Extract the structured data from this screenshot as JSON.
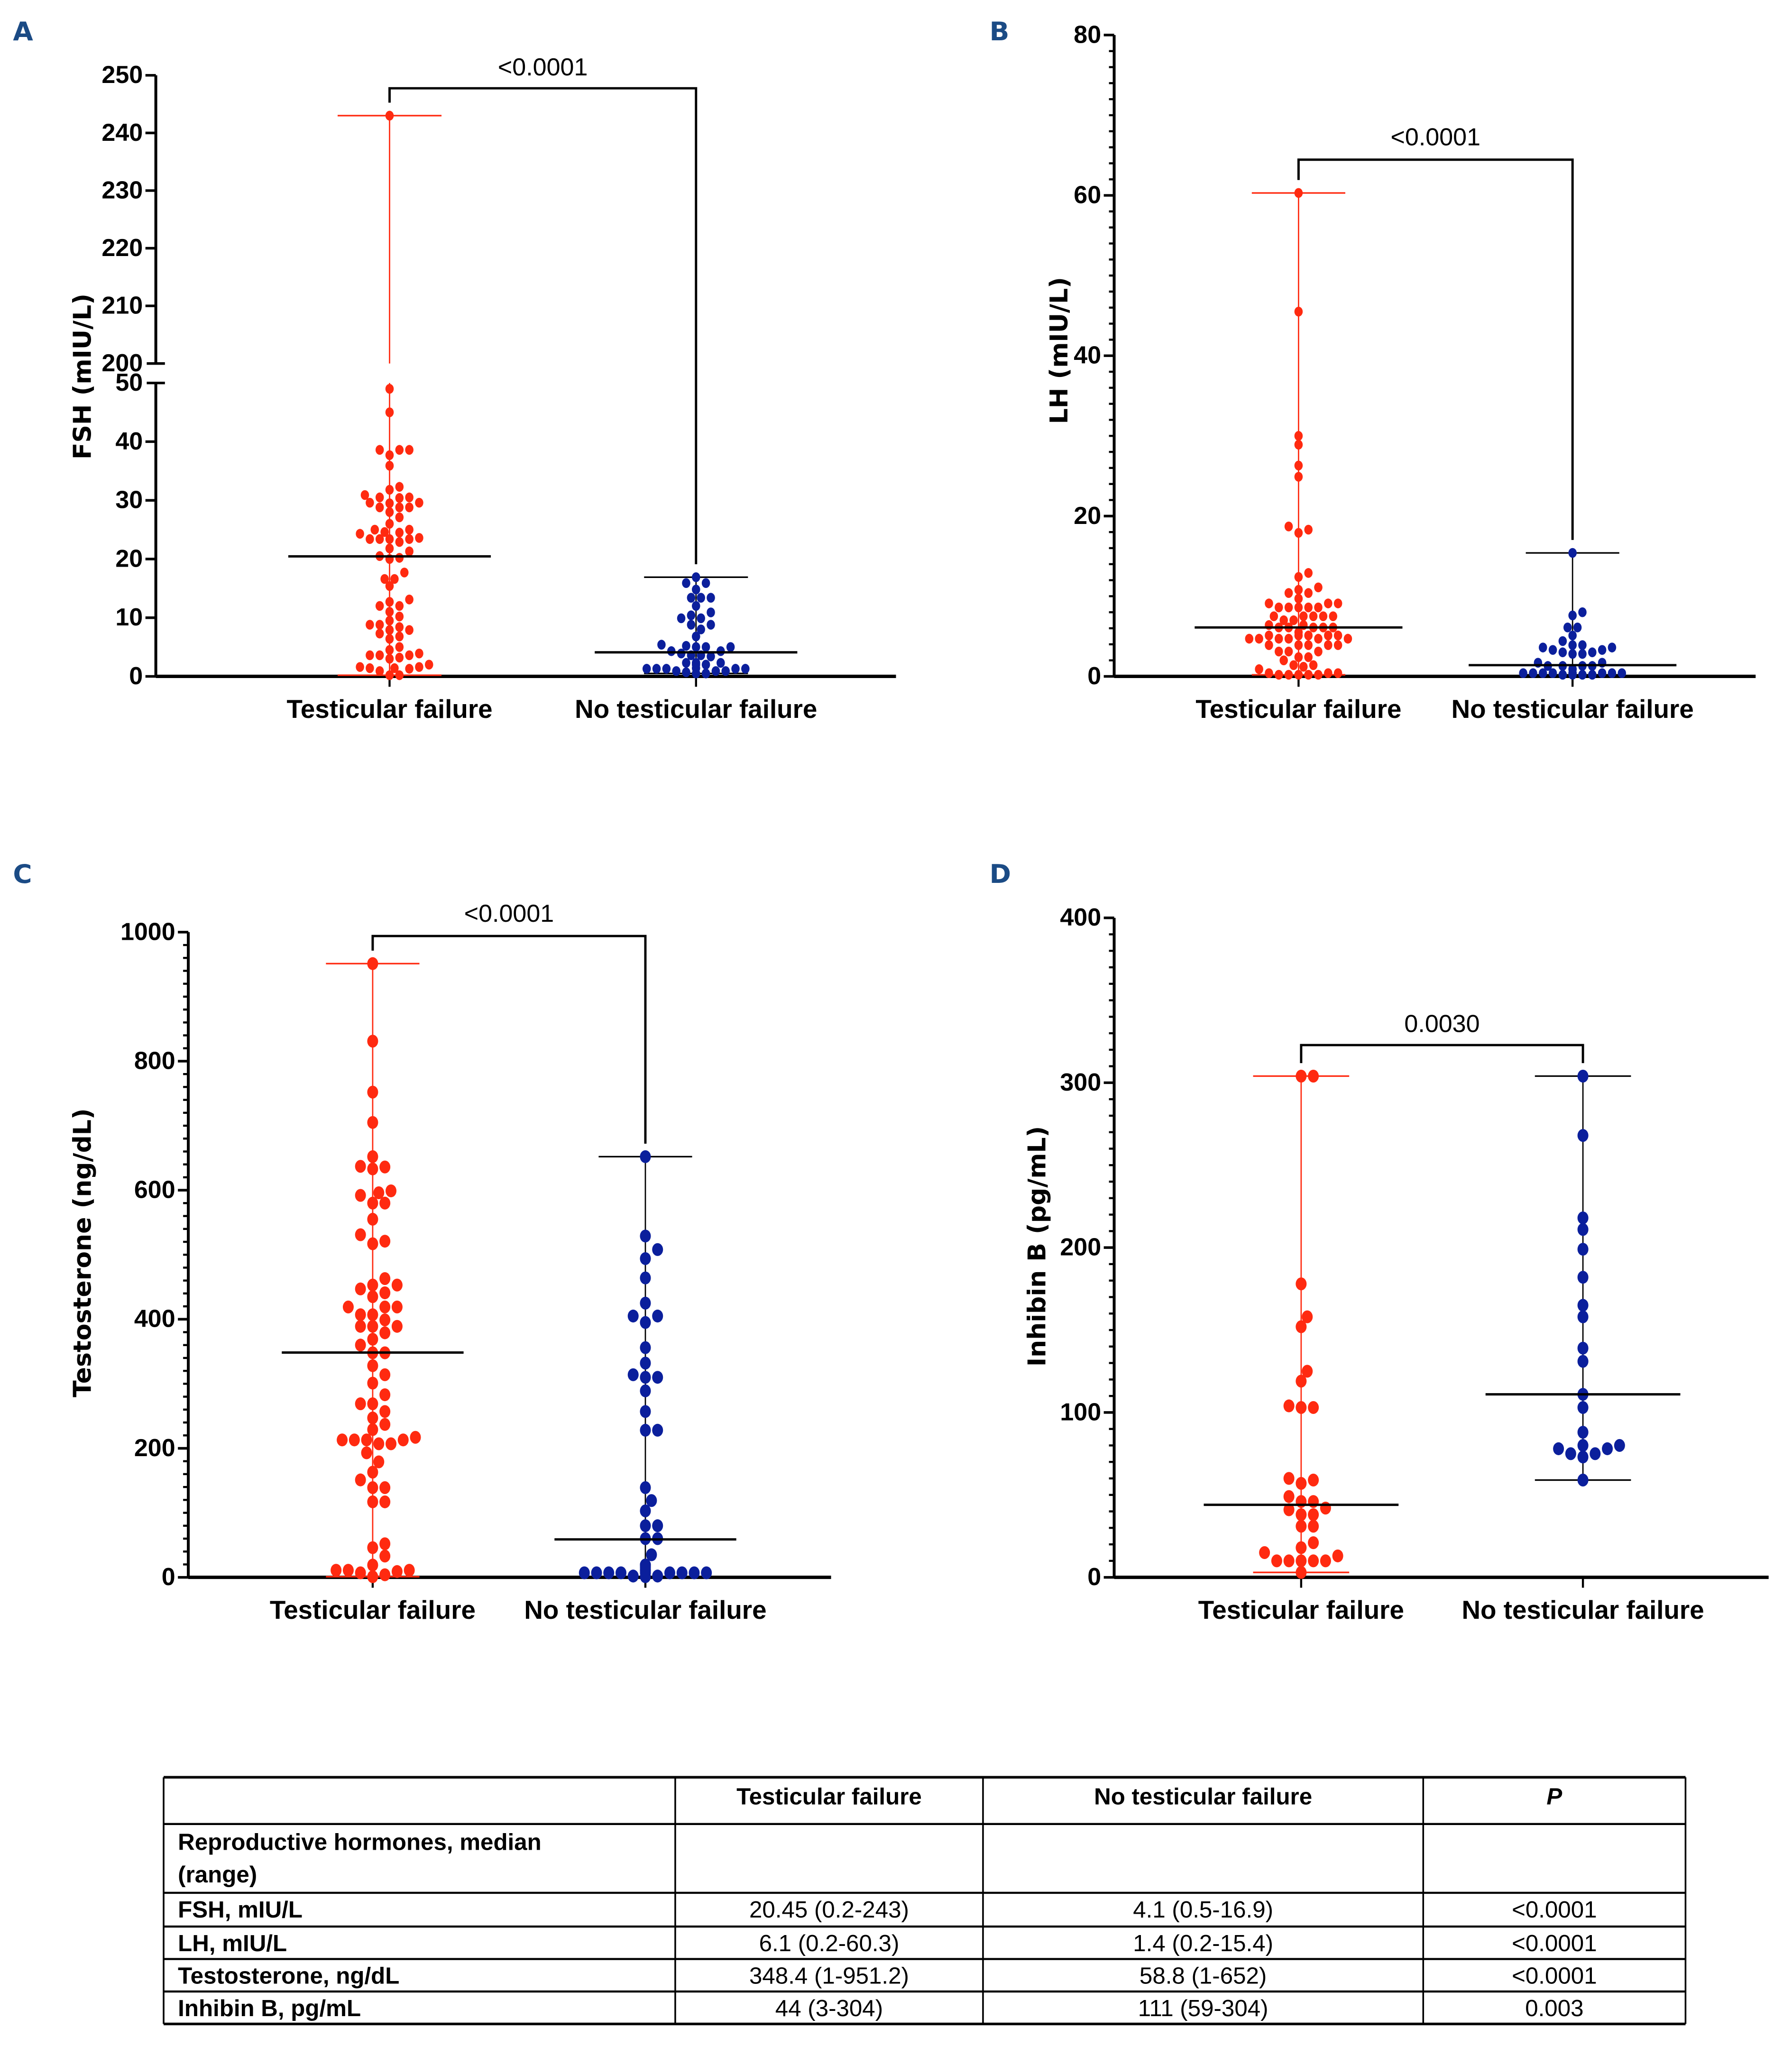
{
  "colors": {
    "panel_label": "#1b4b85",
    "testicular_failure": "#ff2a10",
    "no_testicular_failure": "#0b1f9c",
    "median_line": "#000000"
  },
  "chart_data": [
    {
      "id": "A",
      "type": "scatter",
      "subtype": "dot-plot with median and range",
      "panel_label": "A",
      "ylabel": "FSH (mIU/L)",
      "categories": [
        "Testicular failure",
        "No testicular failure"
      ],
      "y_axis_break": {
        "lower": [
          0,
          50
        ],
        "upper": [
          200,
          250
        ]
      },
      "yticks_lower": [
        0,
        10,
        20,
        30,
        40,
        50
      ],
      "yticks_upper": [
        200,
        210,
        220,
        230,
        240,
        250
      ],
      "significance": {
        "label": "<0.0001",
        "between": [
          "Testicular failure",
          "No testicular failure"
        ]
      },
      "series": [
        {
          "name": "Testicular failure",
          "color_key": "testicular_failure",
          "median": 20.45,
          "min": 0.2,
          "max": 243,
          "values": [
            243,
            49,
            45,
            38.6,
            38.6,
            38.6,
            37.7,
            35.9,
            32.3,
            31.8,
            30.9,
            30.5,
            30.4,
            30.5,
            29.6,
            29.6,
            29.5,
            28.8,
            28.8,
            28.8,
            28.0,
            27.1,
            26.0,
            25.0,
            25.0,
            24.6,
            24.5,
            24.3,
            23.6,
            23.4,
            23.4,
            23.4,
            23.4,
            22.9,
            21.8,
            21.3,
            20.5,
            20.2,
            20.0,
            17.7,
            16.6,
            16.6,
            15.4,
            13.1,
            12.7,
            12.0,
            12.0,
            11.0,
            10.2,
            9.5,
            8.8,
            8.8,
            8.4,
            7.9,
            7.9,
            7.3,
            6.8,
            6.4,
            5.0,
            4.5,
            3.9,
            3.6,
            3.6,
            3.6,
            3.2,
            3.0,
            2.0,
            1.6,
            1.6,
            1.4,
            1.4,
            1.3,
            0.9,
            0.2,
            0.2
          ]
        },
        {
          "name": "No testicular failure",
          "color_key": "no_testicular_failure",
          "median": 4.1,
          "min": 0.5,
          "max": 16.9,
          "values": [
            16.9,
            15.9,
            15.9,
            14.8,
            13.4,
            13.4,
            13.4,
            12.0,
            10.9,
            10.4,
            9.9,
            9.9,
            8.8,
            8.8,
            8.0,
            6.8,
            5.4,
            5.2,
            5.0,
            5.0,
            5.0,
            4.3,
            4.3,
            3.9,
            3.6,
            3.6,
            3.4,
            2.3,
            2.3,
            2.3,
            2.0,
            2.0,
            1.4,
            1.3,
            1.3,
            1.3,
            1.3,
            1.3,
            0.9,
            0.9,
            0.9,
            0.7,
            0.5,
            0.5
          ]
        }
      ]
    },
    {
      "id": "B",
      "type": "scatter",
      "subtype": "dot-plot with median and range",
      "panel_label": "B",
      "ylabel": "LH (mIU/L)",
      "categories": [
        "Testicular failure",
        "No testicular failure"
      ],
      "ylim": [
        0,
        80
      ],
      "yticks": [
        0,
        20,
        40,
        60,
        80
      ],
      "minor_tick_step": 2,
      "significance": {
        "label": "<0.0001",
        "between": [
          "Testicular failure",
          "No testicular failure"
        ]
      },
      "series": [
        {
          "name": "Testicular failure",
          "color_key": "testicular_failure",
          "median": 6.1,
          "min": 0.2,
          "max": 60.3,
          "values": [
            60.3,
            45.5,
            30.0,
            28.9,
            26.3,
            24.9,
            18.7,
            18.3,
            17.9,
            12.9,
            12.4,
            11.1,
            10.8,
            10.4,
            10.4,
            9.7,
            9.1,
            9.1,
            9.1,
            8.6,
            8.6,
            8.6,
            8.6,
            8.6,
            7.5,
            7.5,
            7.5,
            7.5,
            7.5,
            7.0,
            7.0,
            6.4,
            6.4,
            6.1,
            6.1,
            6.1,
            6.1,
            6.1,
            5.5,
            5.1,
            5.1,
            5.1,
            5.1,
            5.1,
            4.7,
            4.7,
            4.7,
            4.7,
            4.7,
            4.7,
            3.9,
            3.9,
            3.9,
            3.9,
            3.9,
            3.1,
            3.1,
            3.1,
            2.4,
            2.4,
            2.0,
            1.4,
            1.4,
            1.2,
            0.9,
            0.4,
            0.4,
            0.4,
            0.2,
            0.2,
            0.2,
            0.2,
            0.2
          ]
        },
        {
          "name": "No testicular failure",
          "color_key": "no_testicular_failure",
          "median": 1.4,
          "min": 0.2,
          "max": 15.4,
          "values": [
            15.4,
            8.0,
            7.6,
            6.1,
            6.1,
            5.1,
            4.4,
            3.9,
            3.9,
            3.6,
            3.6,
            3.3,
            3.3,
            3.0,
            3.0,
            2.8,
            2.8,
            1.7,
            1.7,
            1.3,
            1.3,
            1.3,
            1.3,
            0.9,
            0.9,
            0.9,
            0.4,
            0.4,
            0.4,
            0.4,
            0.4,
            0.4,
            0.4,
            0.4,
            0.4,
            0.4,
            0.4,
            0.2,
            0.2,
            0.2,
            0.2
          ]
        }
      ]
    },
    {
      "id": "C",
      "type": "scatter",
      "subtype": "dot-plot with median and range",
      "panel_label": "C",
      "ylabel": "Testosterone (ng/dL)",
      "categories": [
        "Testicular failure",
        "No testicular failure"
      ],
      "ylim": [
        0,
        1000
      ],
      "yticks": [
        0,
        200,
        400,
        600,
        800,
        1000
      ],
      "minor_tick_step": 20,
      "significance": {
        "label": "<0.0001",
        "between": [
          "Testicular failure",
          "No testicular failure"
        ]
      },
      "series": [
        {
          "name": "Testicular failure",
          "color_key": "testicular_failure",
          "median": 348.4,
          "min": 1,
          "max": 951.2,
          "values": [
            951.2,
            831,
            752,
            705,
            652,
            637,
            636,
            633,
            599,
            596,
            592,
            580,
            580,
            555,
            531,
            521,
            517,
            463,
            453,
            453,
            447,
            441,
            435,
            419,
            419,
            419,
            407,
            407,
            399,
            389,
            389,
            389,
            379,
            369,
            360,
            348,
            348,
            328,
            314,
            301,
            283,
            269,
            269,
            257,
            247,
            237,
            229,
            217,
            213,
            213,
            213,
            213,
            207,
            207,
            193,
            179,
            163,
            151,
            139,
            139,
            117,
            117,
            52,
            46,
            33,
            19,
            11,
            11,
            11,
            9,
            7,
            4,
            1
          ]
        },
        {
          "name": "No testicular failure",
          "color_key": "no_testicular_failure",
          "median": 58.8,
          "min": 1,
          "max": 652,
          "values": [
            652,
            529,
            508,
            494,
            464,
            425,
            405,
            405,
            395,
            356,
            332,
            314,
            310,
            310,
            289,
            257,
            228,
            228,
            139,
            119,
            103,
            80,
            80,
            60,
            60,
            35,
            19,
            19,
            19,
            19,
            19,
            19,
            15,
            11,
            11,
            7,
            7,
            7,
            7,
            7,
            7,
            7,
            7,
            7,
            2,
            2,
            1
          ]
        }
      ]
    },
    {
      "id": "D",
      "type": "scatter",
      "subtype": "dot-plot with median and range",
      "panel_label": "D",
      "ylabel": "Inhibin B (pg/mL)",
      "categories": [
        "Testicular failure",
        "No testicular failure"
      ],
      "ylim": [
        0,
        400
      ],
      "yticks": [
        0,
        100,
        200,
        300,
        400
      ],
      "minor_tick_step": 10,
      "significance": {
        "label": "0.0030",
        "between": [
          "Testicular failure",
          "No testicular failure"
        ]
      },
      "series": [
        {
          "name": "Testicular failure",
          "color_key": "testicular_failure",
          "median": 44,
          "min": 3,
          "max": 304,
          "values": [
            304,
            304,
            178,
            158,
            152,
            125,
            119,
            104,
            103,
            103,
            60,
            59,
            57,
            49,
            46,
            46,
            42,
            41,
            38,
            38,
            31,
            31,
            21,
            18,
            15,
            13,
            10,
            10,
            10,
            10,
            10,
            3
          ]
        },
        {
          "name": "No testicular failure",
          "color_key": "no_testicular_failure",
          "median": 111,
          "min": 59,
          "max": 304,
          "values": [
            304,
            268,
            218,
            211,
            199,
            182,
            165,
            158,
            139,
            131,
            111,
            103,
            88,
            80,
            80,
            78,
            78,
            75,
            75,
            73,
            59
          ]
        }
      ]
    },
    {
      "id": "table",
      "type": "table",
      "columns": [
        "",
        "Testicular failure",
        "No testicular failure",
        "P"
      ],
      "section_header": "Reproductive hormones, median (range)",
      "section_header_lines": [
        "Reproductive hormones, median",
        "(range)"
      ],
      "rows": [
        [
          "FSH, mIU/L",
          "20.45 (0.2-243)",
          "4.1 (0.5-16.9)",
          "<0.0001"
        ],
        [
          "LH, mIU/L",
          "6.1 (0.2-60.3)",
          "1.4 (0.2-15.4)",
          "<0.0001"
        ],
        [
          "Testosterone, ng/dL",
          "348.4 (1-951.2)",
          "58.8 (1-652)",
          "<0.0001"
        ],
        [
          "Inhibin B, pg/mL",
          "44 (3-304)",
          "111 (59-304)",
          "0.003"
        ]
      ]
    }
  ]
}
